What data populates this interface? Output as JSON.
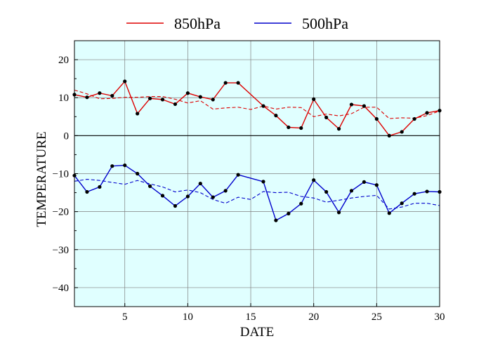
{
  "chart_data": {
    "type": "line",
    "xlabel": "DATE",
    "ylabel": "TEMPERATURE",
    "xlim": [
      1,
      30
    ],
    "ylim": [
      -45,
      25
    ],
    "xticks": [
      5,
      10,
      15,
      20,
      25,
      30
    ],
    "yticks": [
      -40,
      -30,
      -20,
      -10,
      0,
      10,
      20
    ],
    "xtick_labels": [
      "5",
      "10",
      "15",
      "20",
      "25",
      "30"
    ],
    "ytick_labels": [
      "−40",
      "−30",
      "−20",
      "−10",
      "0",
      "10",
      "20"
    ],
    "grid": true,
    "background": "#e0ffff",
    "legend_position": "top-center",
    "legend": [
      "850hPa",
      "500hPa"
    ],
    "series": [
      {
        "name": "850hPa",
        "style": "solid",
        "markers": true,
        "color": "#dd0000",
        "x": [
          1,
          2,
          3,
          4,
          5,
          6,
          7,
          8,
          9,
          10,
          11,
          12,
          13,
          14,
          16,
          17,
          18,
          19,
          20,
          21,
          22,
          23,
          24,
          25,
          26,
          27,
          28,
          29,
          30
        ],
        "values": [
          10.8,
          10.1,
          11.2,
          10.5,
          14.3,
          5.8,
          9.8,
          9.5,
          8.3,
          11.2,
          10.2,
          9.5,
          13.9,
          13.9,
          7.8,
          5.3,
          2.2,
          2.0,
          9.6,
          4.8,
          1.8,
          8.2,
          7.8,
          4.4,
          0.0,
          1.0,
          4.4,
          6.0,
          6.6
        ]
      },
      {
        "style": "dashed",
        "markers": false,
        "color": "#dd0000",
        "x": [
          1,
          2,
          3,
          4,
          5,
          6,
          7,
          8,
          9,
          10,
          11,
          12,
          13,
          14,
          15,
          16,
          17,
          18,
          19,
          20,
          21,
          22,
          23,
          24,
          25,
          26,
          27,
          28,
          29,
          30
        ],
        "values": [
          12.0,
          11.0,
          9.7,
          9.8,
          10.1,
          10.1,
          10.3,
          10.3,
          9.6,
          8.6,
          9.2,
          7.0,
          7.3,
          7.5,
          6.9,
          7.8,
          7.0,
          7.5,
          7.4,
          5.0,
          5.7,
          5.2,
          5.8,
          7.5,
          7.5,
          4.5,
          4.7,
          4.6,
          5.3,
          6.5
        ]
      },
      {
        "name": "500hPa",
        "style": "solid",
        "markers": true,
        "color": "#0000cc",
        "x": [
          1,
          2,
          3,
          4,
          5,
          6,
          7,
          8,
          9,
          10,
          11,
          12,
          13,
          14,
          16,
          17,
          18,
          19,
          20,
          21,
          22,
          23,
          24,
          25,
          26,
          27,
          28,
          29,
          30
        ],
        "values": [
          -10.5,
          -14.8,
          -13.5,
          -8.0,
          -7.8,
          -10.0,
          -13.3,
          -15.8,
          -18.5,
          -16.0,
          -12.6,
          -16.2,
          -14.5,
          -10.3,
          -12.1,
          -22.3,
          -20.5,
          -17.9,
          -11.7,
          -14.8,
          -20.2,
          -14.5,
          -12.2,
          -13.0,
          -20.4,
          -17.8,
          -15.3,
          -14.7,
          -14.8
        ]
      },
      {
        "style": "dashed",
        "markers": false,
        "color": "#0000cc",
        "x": [
          1,
          2,
          3,
          4,
          5,
          6,
          7,
          8,
          9,
          10,
          11,
          12,
          13,
          14,
          15,
          16,
          17,
          18,
          19,
          20,
          21,
          22,
          23,
          24,
          25,
          26,
          27,
          28,
          29,
          30
        ],
        "values": [
          -12.0,
          -11.5,
          -11.8,
          -12.3,
          -12.8,
          -11.8,
          -12.7,
          -13.5,
          -14.8,
          -14.3,
          -15.0,
          -16.8,
          -17.8,
          -16.2,
          -16.8,
          -14.7,
          -15.0,
          -14.9,
          -16.0,
          -16.4,
          -17.5,
          -17.0,
          -16.4,
          -16.0,
          -15.7,
          -19.3,
          -18.8,
          -17.8,
          -17.8,
          -18.4
        ]
      }
    ]
  }
}
